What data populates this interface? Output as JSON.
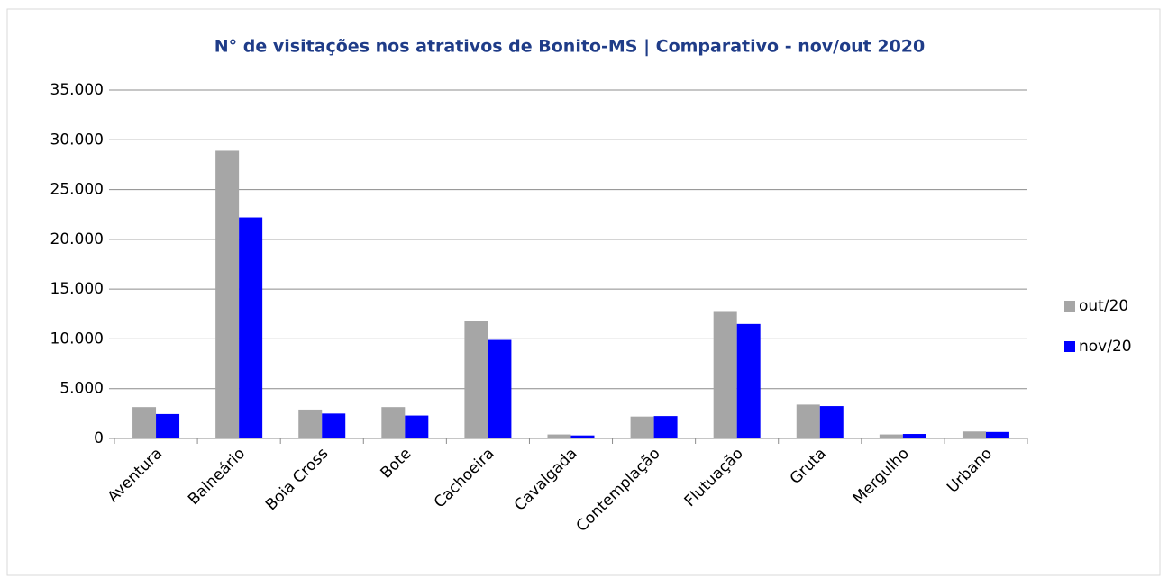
{
  "chart_data": {
    "type": "bar",
    "title": "N° de visitações nos atrativos de Bonito-MS | Comparativo - nov/out  2020",
    "categories": [
      "Aventura",
      "Balneário",
      "Boia Cross",
      "Bote",
      "Cachoeira",
      "Cavalgada",
      "Contemplação",
      "Flutuação",
      "Gruta",
      "Mergulho",
      "Urbano"
    ],
    "series": [
      {
        "name": "out/20",
        "color": "#a6a6a6",
        "values": [
          3150,
          28900,
          2900,
          3150,
          11800,
          400,
          2200,
          12800,
          3400,
          400,
          700
        ]
      },
      {
        "name": "nov/20",
        "color": "#0000ff",
        "values": [
          2450,
          22200,
          2500,
          2300,
          9900,
          300,
          2250,
          11500,
          3250,
          450,
          650
        ]
      }
    ],
    "ylim": [
      0,
      35000
    ],
    "yticks": [
      0,
      {
        "value": 5000,
        "label": "5.000"
      },
      {
        "value": 10000,
        "label": "10.000"
      },
      {
        "value": 15000,
        "label": "15.000"
      },
      {
        "value": 20000,
        "label": "20.000"
      },
      {
        "value": 25000,
        "label": "25.000"
      },
      {
        "value": 30000,
        "label": "30.000"
      },
      {
        "value": 35000,
        "label": "35.000"
      }
    ],
    "grid": true,
    "legend": "right"
  }
}
